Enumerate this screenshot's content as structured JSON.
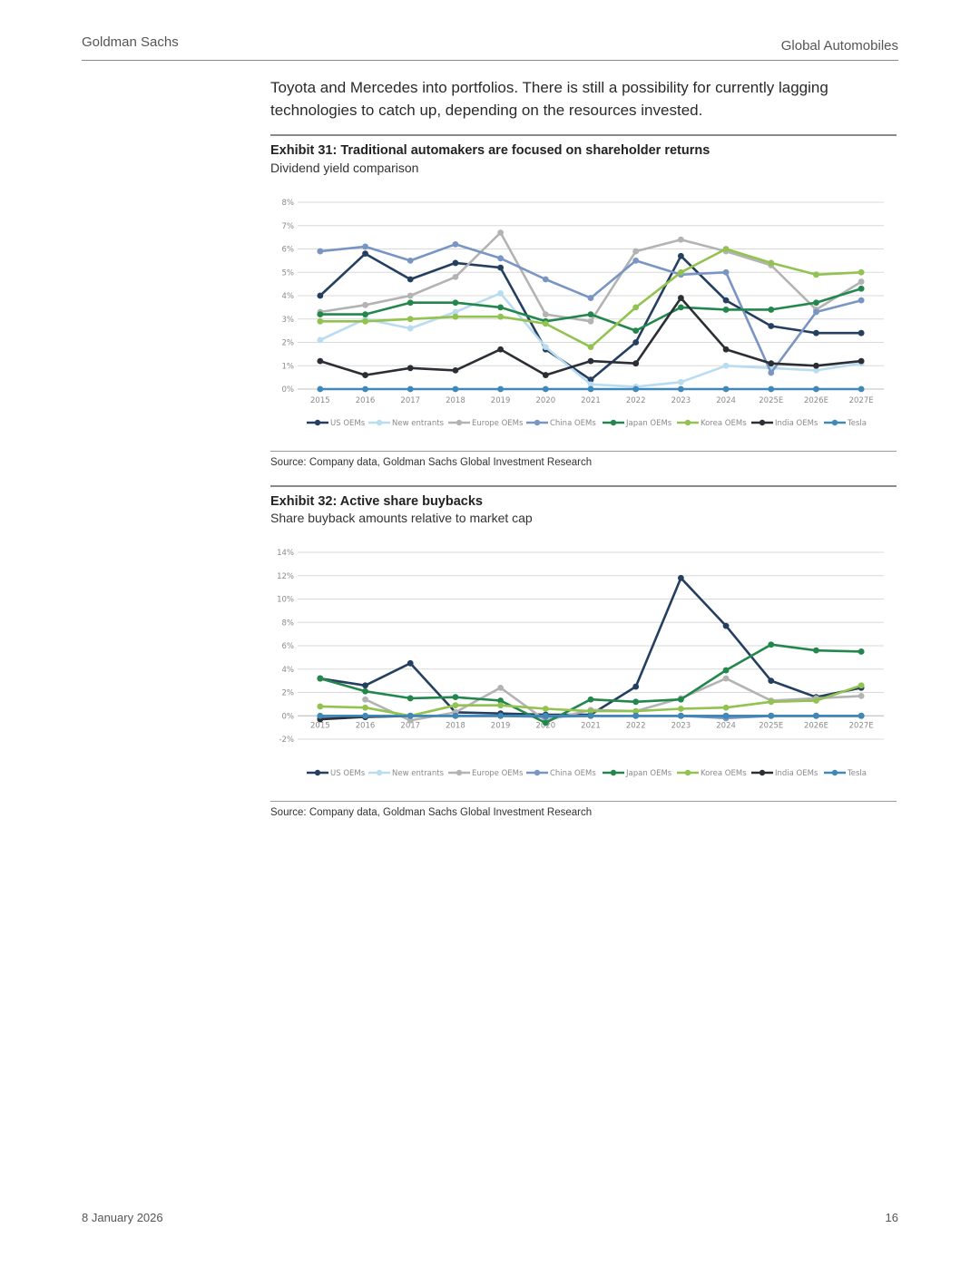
{
  "header": {
    "left": "Goldman Sachs",
    "right": "Global Automobiles"
  },
  "intro": "Toyota and Mercedes into portfolios. There is still a possibility for currently lagging technologies to catch up, depending on the resources invested.",
  "exhibits": [
    {
      "title": "Exhibit 31: Traditional automakers are focused on shareholder returns",
      "subtitle": "Dividend yield comparison",
      "source": "Source: Company data, Goldman Sachs Global Investment Research"
    },
    {
      "title": "Exhibit 32: Active share buybacks",
      "subtitle": "Share buyback amounts relative to market cap",
      "source": "Source: Company data, Goldman Sachs Global Investment Research"
    }
  ],
  "footer": {
    "date": "8 January 2026",
    "page": "16"
  },
  "chart_data": [
    {
      "type": "line",
      "title": "Dividend yield comparison",
      "categories": [
        "2015",
        "2016",
        "2017",
        "2018",
        "2019",
        "2020",
        "2021",
        "2022",
        "2023",
        "2024",
        "2025E",
        "2026E",
        "2027E"
      ],
      "ylim": [
        0,
        8
      ],
      "ystep": 1,
      "yticks": [
        "0%",
        "1%",
        "2%",
        "3%",
        "4%",
        "5%",
        "6%",
        "7%",
        "8%"
      ],
      "series": [
        {
          "name": "US OEMs",
          "color": "#243f60",
          "values": [
            4.0,
            5.8,
            4.7,
            5.4,
            5.2,
            1.7,
            0.4,
            2.0,
            5.7,
            3.8,
            2.7,
            2.4,
            2.4
          ]
        },
        {
          "name": "New entrants",
          "color": "#b9dcf0",
          "values": [
            2.1,
            3.0,
            2.6,
            3.3,
            4.1,
            1.8,
            0.2,
            0.1,
            0.3,
            1.0,
            0.9,
            0.8,
            1.1
          ]
        },
        {
          "name": "Europe OEMs",
          "color": "#b3b3b3",
          "values": [
            3.3,
            3.6,
            4.0,
            4.8,
            6.7,
            3.2,
            2.9,
            5.9,
            6.4,
            5.9,
            5.3,
            3.4,
            4.6
          ]
        },
        {
          "name": "China OEMs",
          "color": "#7895c3",
          "values": [
            5.9,
            6.1,
            5.5,
            6.2,
            5.6,
            4.7,
            3.9,
            5.5,
            4.9,
            5.0,
            0.7,
            3.3,
            3.8
          ]
        },
        {
          "name": "Japan OEMs",
          "color": "#23874d",
          "values": [
            3.2,
            3.2,
            3.7,
            3.7,
            3.5,
            2.9,
            3.2,
            2.5,
            3.5,
            3.4,
            3.4,
            3.7,
            4.3
          ]
        },
        {
          "name": "Korea OEMs",
          "color": "#92c24f",
          "values": [
            2.9,
            2.9,
            3.0,
            3.1,
            3.1,
            2.8,
            1.8,
            3.5,
            5.0,
            6.0,
            5.4,
            4.9,
            5.0
          ]
        },
        {
          "name": "India OEMs",
          "color": "#2b2f35",
          "values": [
            1.2,
            0.6,
            0.9,
            0.8,
            1.7,
            0.6,
            1.2,
            1.1,
            3.9,
            1.7,
            1.1,
            1.0,
            1.2
          ]
        },
        {
          "name": "Tesla",
          "color": "#3f88b8",
          "values": [
            0,
            0,
            0,
            0,
            0,
            0,
            0,
            0,
            0,
            0,
            0,
            0,
            0
          ]
        }
      ]
    },
    {
      "type": "line",
      "title": "Share buyback amounts relative to market cap",
      "categories": [
        "2015",
        "2016",
        "2017",
        "2018",
        "2019",
        "2020",
        "2021",
        "2022",
        "2023",
        "2024",
        "2025E",
        "2026E",
        "2027E"
      ],
      "ylim": [
        -2,
        14
      ],
      "ystep": 2,
      "yticks": [
        "-2%",
        "0%",
        "2%",
        "4%",
        "6%",
        "8%",
        "10%",
        "12%",
        "14%"
      ],
      "series": [
        {
          "name": "US OEMs",
          "color": "#243f60",
          "values": [
            3.2,
            2.6,
            4.5,
            0.3,
            0.2,
            0.1,
            0.1,
            2.5,
            11.8,
            7.7,
            3.0,
            1.6,
            2.4
          ]
        },
        {
          "name": "New entrants",
          "color": "#b9dcf0",
          "values": [
            0.0,
            0.0,
            0.0,
            0.0,
            0.0,
            0.0,
            0.0,
            0.0,
            0.0,
            0.0,
            0.0,
            0.0,
            0.0
          ]
        },
        {
          "name": "Europe OEMs",
          "color": "#b3b3b3",
          "values": [
            null,
            1.4,
            -0.4,
            0.3,
            2.4,
            -0.4,
            0.5,
            0.4,
            1.5,
            3.2,
            1.3,
            1.5,
            1.7
          ]
        },
        {
          "name": "China OEMs",
          "color": "#7895c3",
          "values": [
            -0.1,
            -0.1,
            0.0,
            0.0,
            0.0,
            -0.1,
            0.0,
            0.0,
            0.0,
            -0.2,
            0.0,
            0.0,
            0.0
          ]
        },
        {
          "name": "Japan OEMs",
          "color": "#23874d",
          "values": [
            3.2,
            2.1,
            1.5,
            1.6,
            1.3,
            -0.6,
            1.4,
            1.2,
            1.4,
            3.9,
            6.1,
            5.6,
            5.5
          ]
        },
        {
          "name": "Korea OEMs",
          "color": "#92c24f",
          "values": [
            0.8,
            0.7,
            0.0,
            0.9,
            0.9,
            0.6,
            0.4,
            0.4,
            0.6,
            0.7,
            1.2,
            1.3,
            2.6
          ]
        },
        {
          "name": "India OEMs",
          "color": "#2b2f35",
          "values": [
            -0.3,
            -0.1,
            0.0,
            0.0,
            0.0,
            0.0,
            0.0,
            0.0,
            0.0,
            0.0,
            0.0,
            0.0,
            0.0
          ]
        },
        {
          "name": "Tesla",
          "color": "#3f88b8",
          "values": [
            0,
            0,
            0,
            0,
            0,
            0,
            0,
            0,
            0,
            0,
            0,
            0,
            0
          ]
        }
      ]
    }
  ]
}
